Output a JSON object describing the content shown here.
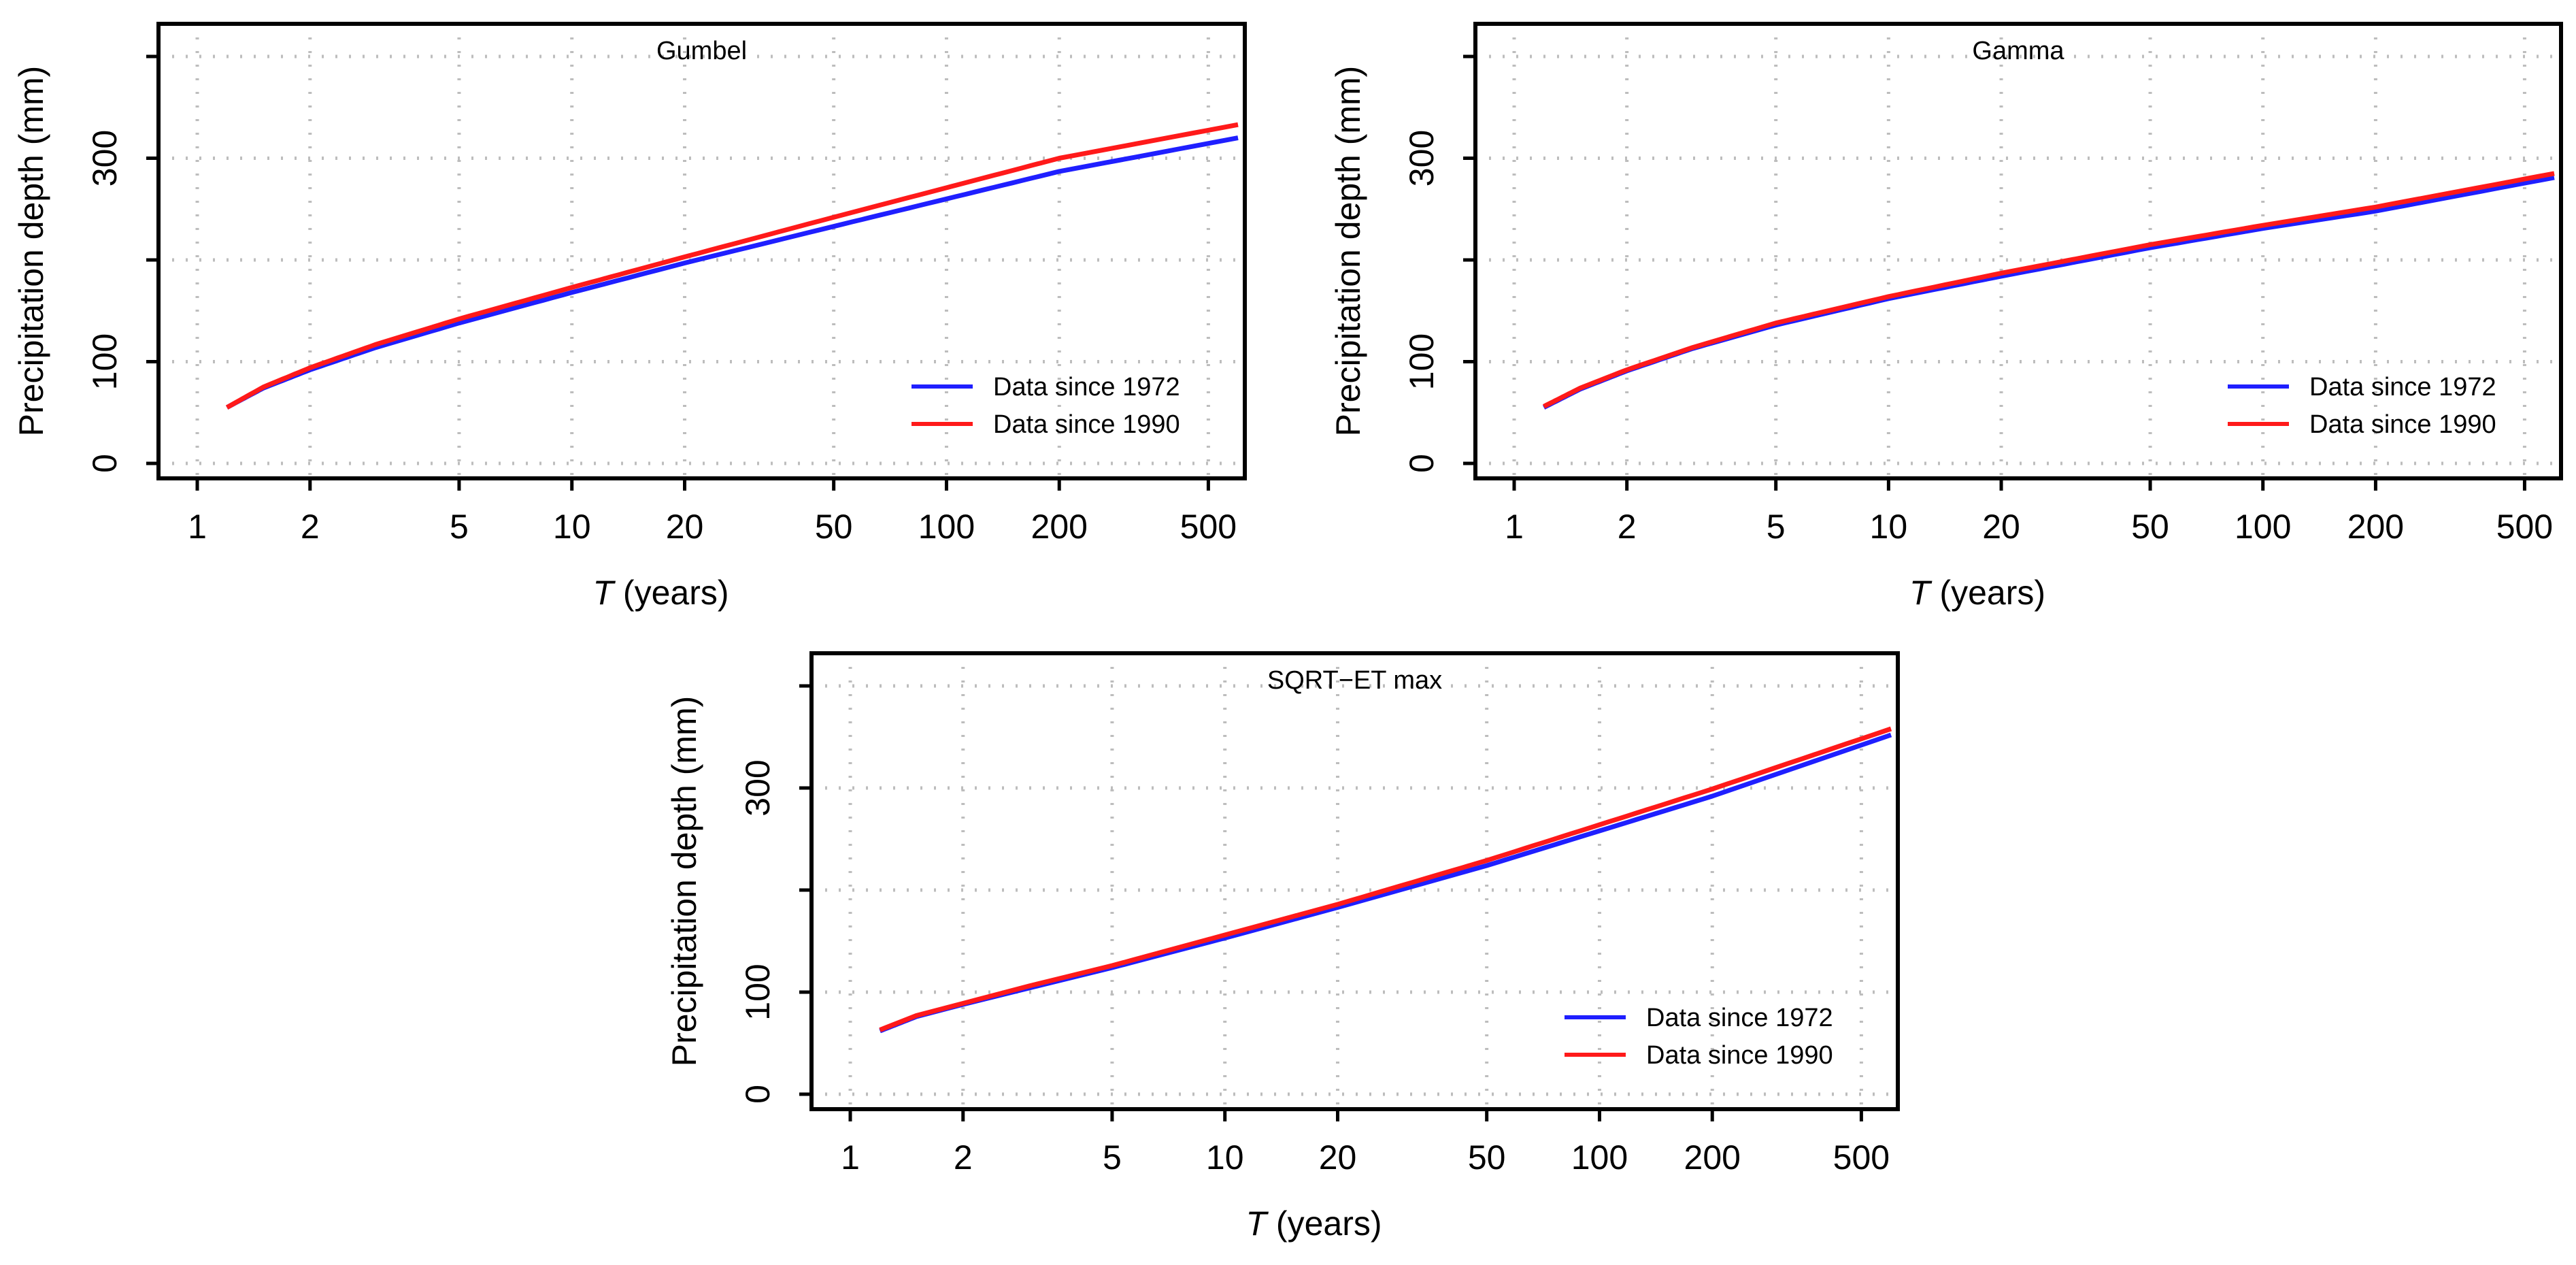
{
  "x_axis_label_italic": "T",
  "x_axis_label_rest": " (years)",
  "y_axis_label": "Precipitation depth (mm)",
  "colors": {
    "series_1972": "#1f1fff",
    "series_1990": "#ff1a1a",
    "grid": "#bdbdbd"
  },
  "chart_data": [
    {
      "type": "line",
      "title": "Gumbel",
      "xlabel": "T (years)",
      "ylabel": "Precipitation depth (mm)",
      "x_scale": "log",
      "xlim": [
        1,
        600
      ],
      "ylim": [
        0,
        400
      ],
      "x_ticks": [
        1,
        2,
        5,
        10,
        20,
        50,
        100,
        200,
        500
      ],
      "x_tick_labels": [
        "1",
        "2",
        "5",
        "10",
        "20",
        "50",
        "100",
        "200",
        "500"
      ],
      "y_ticks": [
        0,
        100,
        300
      ],
      "y_tick_labels": [
        "0",
        "100",
        "300"
      ],
      "y_grid": [
        0,
        100,
        200,
        300,
        400
      ],
      "grid": true,
      "legend_position": "bottom-right",
      "series": [
        {
          "name": "Data since 1972",
          "color": "#1f1fff",
          "x": [
            1.2,
            1.5,
            2,
            3,
            5,
            10,
            20,
            50,
            100,
            200,
            600
          ],
          "y": [
            55,
            74,
            92,
            114,
            138,
            168,
            197,
            233,
            260,
            287,
            320
          ]
        },
        {
          "name": "Data since 1990",
          "color": "#ff1a1a",
          "x": [
            1.2,
            1.5,
            2,
            3,
            5,
            10,
            20,
            50,
            100,
            200,
            600
          ],
          "y": [
            55,
            75,
            94,
            117,
            142,
            173,
            203,
            242,
            271,
            300,
            333
          ]
        }
      ]
    },
    {
      "type": "line",
      "title": "Gamma",
      "xlabel": "T (years)",
      "ylabel": "Precipitation depth (mm)",
      "x_scale": "log",
      "xlim": [
        1,
        600
      ],
      "ylim": [
        0,
        400
      ],
      "x_ticks": [
        1,
        2,
        5,
        10,
        20,
        50,
        100,
        200,
        500
      ],
      "x_tick_labels": [
        "1",
        "2",
        "5",
        "10",
        "20",
        "50",
        "100",
        "200",
        "500"
      ],
      "y_ticks": [
        0,
        100,
        300
      ],
      "y_tick_labels": [
        "0",
        "100",
        "300"
      ],
      "y_grid": [
        0,
        100,
        200,
        300,
        400
      ],
      "grid": true,
      "legend_position": "bottom-right",
      "series": [
        {
          "name": "Data since 1972",
          "color": "#1f1fff",
          "x": [
            1.2,
            1.5,
            2,
            3,
            5,
            10,
            20,
            50,
            100,
            200,
            600
          ],
          "y": [
            55,
            73,
            91,
            113,
            136,
            162,
            184,
            212,
            231,
            248,
            281
          ]
        },
        {
          "name": "Data since 1990",
          "color": "#ff1a1a",
          "x": [
            1.2,
            1.5,
            2,
            3,
            5,
            10,
            20,
            50,
            100,
            200,
            600
          ],
          "y": [
            56,
            74,
            92,
            114,
            138,
            164,
            187,
            215,
            234,
            252,
            285
          ]
        }
      ]
    },
    {
      "type": "line",
      "title": "SQRT−ET max",
      "xlabel": "T (years)",
      "ylabel": "Precipitation depth (mm)",
      "x_scale": "log",
      "xlim": [
        1,
        600
      ],
      "ylim": [
        0,
        400
      ],
      "x_ticks": [
        1,
        2,
        5,
        10,
        20,
        50,
        100,
        200,
        500
      ],
      "x_tick_labels": [
        "1",
        "2",
        "5",
        "10",
        "20",
        "50",
        "100",
        "200",
        "500"
      ],
      "y_ticks": [
        0,
        100,
        300
      ],
      "y_tick_labels": [
        "0",
        "100",
        "300"
      ],
      "y_grid": [
        0,
        100,
        200,
        300,
        400
      ],
      "grid": true,
      "legend_position": "bottom-right",
      "series": [
        {
          "name": "Data since 1972",
          "color": "#1f1fff",
          "x": [
            1.2,
            1.5,
            2,
            3,
            5,
            10,
            20,
            50,
            100,
            200,
            600
          ],
          "y": [
            62,
            76,
            88,
            104,
            124,
            153,
            183,
            224,
            258,
            292,
            352
          ]
        },
        {
          "name": "Data since 1990",
          "color": "#ff1a1a",
          "x": [
            1.2,
            1.5,
            2,
            3,
            5,
            10,
            20,
            50,
            100,
            200,
            600
          ],
          "y": [
            63,
            77,
            89,
            106,
            126,
            156,
            186,
            229,
            264,
            299,
            358
          ]
        }
      ]
    }
  ]
}
